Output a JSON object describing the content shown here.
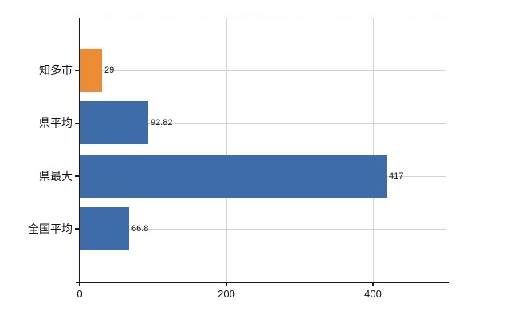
{
  "chart_data": {
    "type": "bar",
    "orientation": "horizontal",
    "title": "",
    "xlabel": "",
    "ylabel": "",
    "categories": [
      "知多市",
      "県平均",
      "県最大",
      "全国平均"
    ],
    "values": [
      29,
      92.82,
      417,
      66.8
    ],
    "value_labels": [
      "29",
      "92.82",
      "417",
      "66.8"
    ],
    "bar_colors": [
      "#ed8c35",
      "#3d6ca8",
      "#3d6ca8",
      "#3d6ca8"
    ],
    "xlim": [
      0,
      500
    ],
    "x_ticks": [
      0,
      200,
      400
    ],
    "x_tick_labels": [
      "0",
      "200",
      "400"
    ],
    "grid": "on",
    "legend": "none"
  },
  "colors": {
    "background": "#ffffff",
    "axis_line": "#1a1a1a",
    "h_gridline": "#ccd8cc",
    "v_gridline": "#d2d6d2",
    "top_border_dashed": "#c6c6c6",
    "bar_orange": "#ed8c35",
    "bar_blue": "#3d6ca8",
    "label_text": "#111111"
  }
}
